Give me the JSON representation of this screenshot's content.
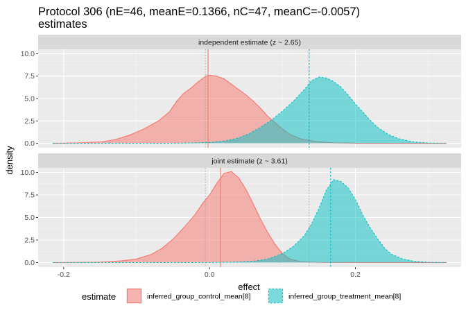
{
  "chart_data": {
    "type": "area",
    "title_line1": "Protocol 306 (nE=46, meanE=0.1366, nC=47, meanC=-0.0057)",
    "title_line2": "estimates",
    "xlabel": "effect",
    "ylabel": "density",
    "xlim": [
      -0.235,
      0.345
    ],
    "ylim": [
      -0.5,
      10.5
    ],
    "x_ticks": [
      -0.2,
      0.0,
      0.2
    ],
    "x_tick_labels": [
      "-0.2",
      "0.0",
      "0.2"
    ],
    "y_ticks": [
      0,
      2.5,
      5,
      7.5,
      10
    ],
    "y_tick_labels": [
      "0.0",
      "2.5",
      "5.0",
      "7.5",
      "10.0"
    ],
    "legend": {
      "title": "estimate",
      "position": "bottom",
      "entries": [
        {
          "label": "inferred_group_control_mean[8]",
          "color": "#F8766D",
          "line_style": "solid"
        },
        {
          "label": "inferred_group_treatment_mean[8]",
          "color": "#00BFC4",
          "line_style": "dashed"
        }
      ]
    },
    "panels": [
      {
        "strip_label": "independent estimate (z ~  2.65)",
        "reference_lines": [
          -0.0057,
          0.1366
        ],
        "series": [
          {
            "name": "inferred_group_control_mean[8]",
            "color": "#F8766D",
            "line_style": "solid",
            "mean": -0.002,
            "points": [
              [
                -0.215,
                0.0
              ],
              [
                -0.18,
                0.05
              ],
              [
                -0.15,
                0.15
              ],
              [
                -0.13,
                0.4
              ],
              [
                -0.11,
                0.9
              ],
              [
                -0.09,
                1.6
              ],
              [
                -0.07,
                2.5
              ],
              [
                -0.055,
                3.5
              ],
              [
                -0.045,
                4.7
              ],
              [
                -0.035,
                5.6
              ],
              [
                -0.025,
                6.2
              ],
              [
                -0.015,
                6.9
              ],
              [
                -0.005,
                7.5
              ],
              [
                0.0,
                7.6
              ],
              [
                0.01,
                7.5
              ],
              [
                0.02,
                7.2
              ],
              [
                0.03,
                6.6
              ],
              [
                0.04,
                6.0
              ],
              [
                0.05,
                5.4
              ],
              [
                0.06,
                4.7
              ],
              [
                0.07,
                3.9
              ],
              [
                0.08,
                3.0
              ],
              [
                0.09,
                2.3
              ],
              [
                0.1,
                1.6
              ],
              [
                0.11,
                1.0
              ],
              [
                0.125,
                0.5
              ],
              [
                0.145,
                0.2
              ],
              [
                0.17,
                0.05
              ],
              [
                0.2,
                0.01
              ],
              [
                0.325,
                0.0
              ]
            ]
          },
          {
            "name": "inferred_group_treatment_mean[8]",
            "color": "#00BFC4",
            "line_style": "dashed",
            "mean": 0.1366,
            "points": [
              [
                -0.215,
                0.0
              ],
              [
                -0.05,
                0.0
              ],
              [
                -0.02,
                0.05
              ],
              [
                0.0,
                0.1
              ],
              [
                0.02,
                0.25
              ],
              [
                0.04,
                0.6
              ],
              [
                0.055,
                1.1
              ],
              [
                0.07,
                1.8
              ],
              [
                0.085,
                2.6
              ],
              [
                0.1,
                3.6
              ],
              [
                0.115,
                4.7
              ],
              [
                0.13,
                6.0
              ],
              [
                0.14,
                7.0
              ],
              [
                0.15,
                7.4
              ],
              [
                0.16,
                7.3
              ],
              [
                0.17,
                6.9
              ],
              [
                0.18,
                6.3
              ],
              [
                0.19,
                5.4
              ],
              [
                0.2,
                4.4
              ],
              [
                0.21,
                3.5
              ],
              [
                0.22,
                2.6
              ],
              [
                0.23,
                1.8
              ],
              [
                0.245,
                1.0
              ],
              [
                0.26,
                0.5
              ],
              [
                0.28,
                0.15
              ],
              [
                0.3,
                0.04
              ],
              [
                0.325,
                0.0
              ]
            ]
          }
        ]
      },
      {
        "strip_label": "joint estimate (z ~  3.61)",
        "reference_lines": [
          -0.0057,
          0.1366
        ],
        "series": [
          {
            "name": "inferred_group_control_mean[8]",
            "color": "#F8766D",
            "line_style": "solid",
            "mean": 0.015,
            "points": [
              [
                -0.215,
                0.0
              ],
              [
                -0.15,
                0.05
              ],
              [
                -0.12,
                0.2
              ],
              [
                -0.1,
                0.4
              ],
              [
                -0.08,
                0.9
              ],
              [
                -0.065,
                1.6
              ],
              [
                -0.05,
                2.6
              ],
              [
                -0.035,
                3.9
              ],
              [
                -0.02,
                5.3
              ],
              [
                -0.01,
                6.5
              ],
              [
                0.0,
                7.5
              ],
              [
                0.01,
                8.8
              ],
              [
                0.02,
                9.9
              ],
              [
                0.03,
                10.1
              ],
              [
                0.04,
                9.4
              ],
              [
                0.05,
                8.1
              ],
              [
                0.06,
                6.5
              ],
              [
                0.07,
                4.8
              ],
              [
                0.08,
                3.3
              ],
              [
                0.09,
                2.0
              ],
              [
                0.1,
                1.0
              ],
              [
                0.11,
                0.4
              ],
              [
                0.125,
                0.1
              ],
              [
                0.15,
                0.02
              ],
              [
                0.325,
                0.0
              ]
            ]
          },
          {
            "name": "inferred_group_treatment_mean[8]",
            "color": "#00BFC4",
            "line_style": "dashed",
            "mean": 0.166,
            "points": [
              [
                -0.215,
                0.0
              ],
              [
                0.0,
                0.0
              ],
              [
                0.03,
                0.05
              ],
              [
                0.06,
                0.15
              ],
              [
                0.08,
                0.4
              ],
              [
                0.1,
                1.0
              ],
              [
                0.115,
                1.8
              ],
              [
                0.13,
                3.0
              ],
              [
                0.14,
                4.3
              ],
              [
                0.15,
                6.0
              ],
              [
                0.16,
                8.0
              ],
              [
                0.17,
                9.2
              ],
              [
                0.18,
                9.0
              ],
              [
                0.19,
                8.3
              ],
              [
                0.2,
                7.0
              ],
              [
                0.21,
                5.3
              ],
              [
                0.22,
                3.9
              ],
              [
                0.23,
                2.7
              ],
              [
                0.24,
                1.6
              ],
              [
                0.25,
                0.9
              ],
              [
                0.265,
                0.4
              ],
              [
                0.28,
                0.15
              ],
              [
                0.3,
                0.04
              ],
              [
                0.325,
                0.0
              ]
            ]
          }
        ]
      }
    ],
    "grid": true,
    "colors": {
      "panel_background": "#EBEBEB",
      "strip_background": "#D9D9D9",
      "grid_major": "#FFFFFF",
      "reference_line": "#A6A6A6"
    }
  }
}
